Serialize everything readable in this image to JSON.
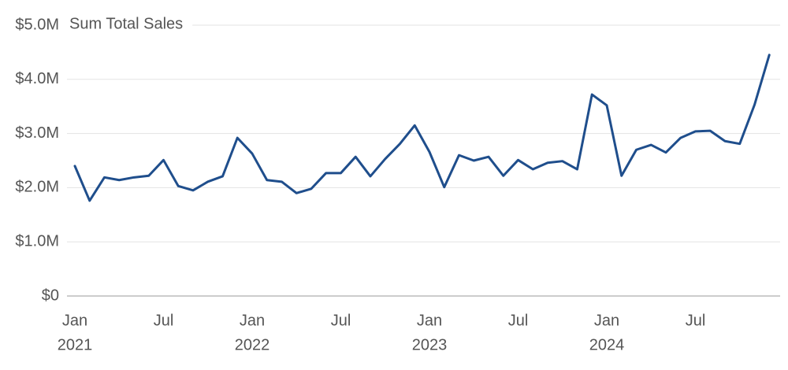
{
  "chart_data": {
    "type": "line",
    "title": "Sum Total Sales",
    "x": [
      "2021-01",
      "2021-02",
      "2021-03",
      "2021-04",
      "2021-05",
      "2021-06",
      "2021-07",
      "2021-08",
      "2021-09",
      "2021-10",
      "2021-11",
      "2021-12",
      "2022-01",
      "2022-02",
      "2022-03",
      "2022-04",
      "2022-05",
      "2022-06",
      "2022-07",
      "2022-08",
      "2022-09",
      "2022-10",
      "2022-11",
      "2022-12",
      "2023-01",
      "2023-02",
      "2023-03",
      "2023-04",
      "2023-05",
      "2023-06",
      "2023-07",
      "2023-08",
      "2023-09",
      "2023-10",
      "2023-11",
      "2023-12",
      "2024-01",
      "2024-02",
      "2024-03",
      "2024-04",
      "2024-05",
      "2024-06",
      "2024-07",
      "2024-08",
      "2024-09",
      "2024-10",
      "2024-11",
      "2024-12"
    ],
    "series": [
      {
        "name": "Sum Total Sales",
        "color": "#1f4e8c",
        "values": [
          2400000,
          1760000,
          2190000,
          2140000,
          2190000,
          2220000,
          2510000,
          2030000,
          1950000,
          2110000,
          2210000,
          2920000,
          2630000,
          2140000,
          2110000,
          1900000,
          1980000,
          2270000,
          2270000,
          2570000,
          2210000,
          2530000,
          2810000,
          3150000,
          2660000,
          2010000,
          2600000,
          2500000,
          2570000,
          2220000,
          2510000,
          2340000,
          2460000,
          2490000,
          2340000,
          3720000,
          3520000,
          2220000,
          2700000,
          2790000,
          2650000,
          2920000,
          3040000,
          3050000,
          2860000,
          2810000,
          3530000,
          4450000
        ]
      }
    ],
    "ylim": [
      0,
      5000000
    ],
    "yticks": [
      {
        "value": 0,
        "label": "$0"
      },
      {
        "value": 1000000,
        "label": "$1.0M"
      },
      {
        "value": 2000000,
        "label": "$2.0M"
      },
      {
        "value": 3000000,
        "label": "$3.0M"
      },
      {
        "value": 4000000,
        "label": "$4.0M"
      },
      {
        "value": 5000000,
        "label": "$5.0M"
      }
    ],
    "xticks": [
      {
        "value": "2021-01",
        "label": "Jan",
        "year": "2021"
      },
      {
        "value": "2021-07",
        "label": "Jul"
      },
      {
        "value": "2022-01",
        "label": "Jan",
        "year": "2022"
      },
      {
        "value": "2022-07",
        "label": "Jul"
      },
      {
        "value": "2023-01",
        "label": "Jan",
        "year": "2023"
      },
      {
        "value": "2023-07",
        "label": "Jul"
      },
      {
        "value": "2024-01",
        "label": "Jan",
        "year": "2024"
      },
      {
        "value": "2024-07",
        "label": "Jul"
      }
    ],
    "grid": true
  }
}
